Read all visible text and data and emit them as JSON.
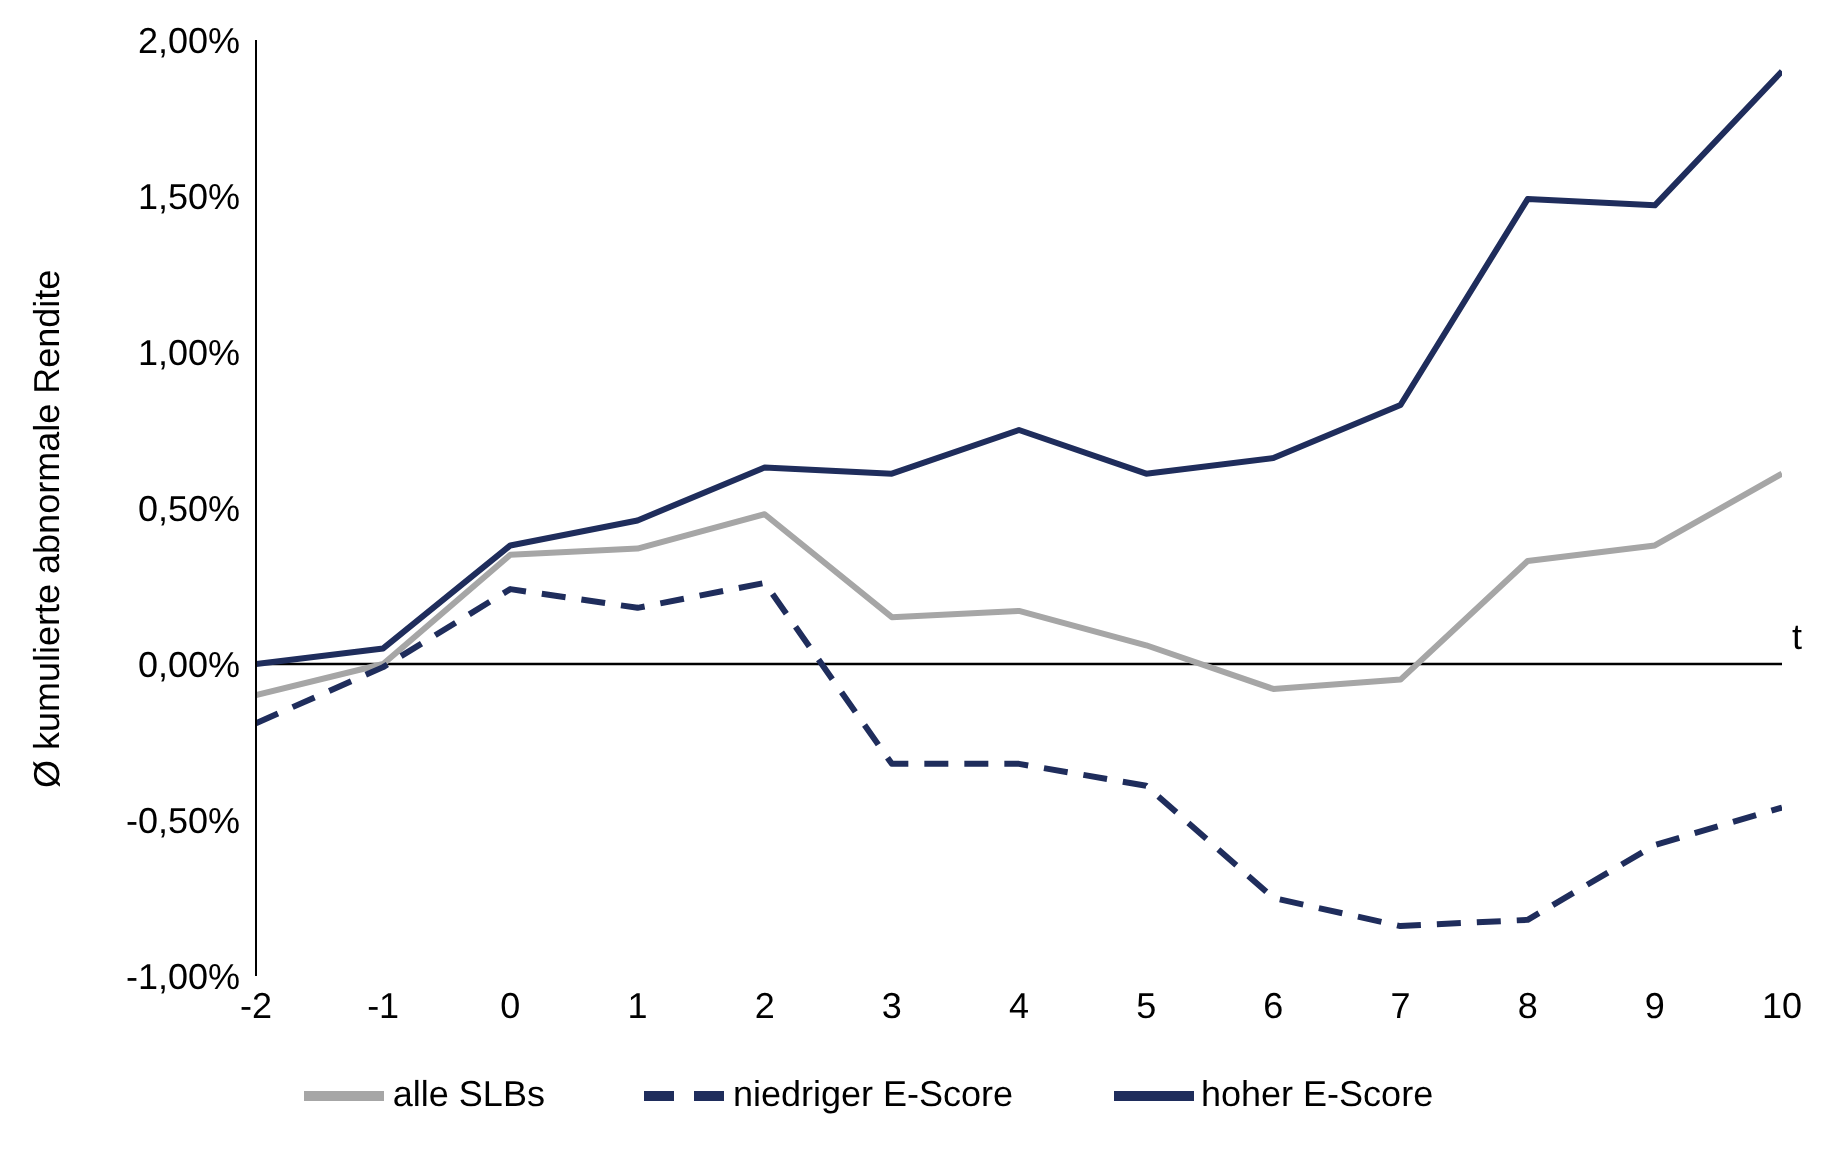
{
  "chart_data": {
    "type": "line",
    "xlabel": "t",
    "ylabel": "Ø kumulierte abnormale Rendite",
    "x": [
      -2,
      -1,
      0,
      1,
      2,
      3,
      4,
      5,
      6,
      7,
      8,
      9,
      10
    ],
    "series": [
      {
        "name": "alle SLBs",
        "color": "#a6a6a6",
        "line_style": "solid",
        "values": [
          -0.1,
          0.0,
          0.35,
          0.37,
          0.48,
          0.15,
          0.17,
          0.06,
          -0.08,
          -0.05,
          0.33,
          0.38,
          0.61
        ]
      },
      {
        "name": "niedriger E-Score",
        "color": "#1f2d5c",
        "line_style": "dashed",
        "values": [
          -0.19,
          -0.01,
          0.24,
          0.18,
          0.26,
          -0.32,
          -0.32,
          -0.39,
          -0.75,
          -0.84,
          -0.82,
          -0.58,
          -0.46
        ]
      },
      {
        "name": "hoher E-Score",
        "color": "#1f2d5c",
        "line_style": "solid",
        "values": [
          0.0,
          0.05,
          0.38,
          0.46,
          0.63,
          0.61,
          0.75,
          0.61,
          0.66,
          0.83,
          1.49,
          1.47,
          1.9
        ]
      }
    ],
    "xlim": [
      -2,
      10
    ],
    "xticks": [
      -2,
      -1,
      0,
      1,
      2,
      3,
      4,
      5,
      6,
      7,
      8,
      9,
      10
    ],
    "ylim": [
      -1,
      2
    ],
    "yticks": [
      {
        "value": -1,
        "label": "-1,00%"
      },
      {
        "value": -0.5,
        "label": "-0,50%"
      },
      {
        "value": 0,
        "label": "0,00%"
      },
      {
        "value": 0.5,
        "label": "0,50%"
      },
      {
        "value": 1,
        "label": "1,00%"
      },
      {
        "value": 1.5,
        "label": "1,50%"
      },
      {
        "value": 2,
        "label": "2,00%"
      }
    ],
    "ref_lines": [
      {
        "axis": "y",
        "value": 0,
        "color": "#000000"
      }
    ],
    "legend": "bottom",
    "marker": "none"
  }
}
